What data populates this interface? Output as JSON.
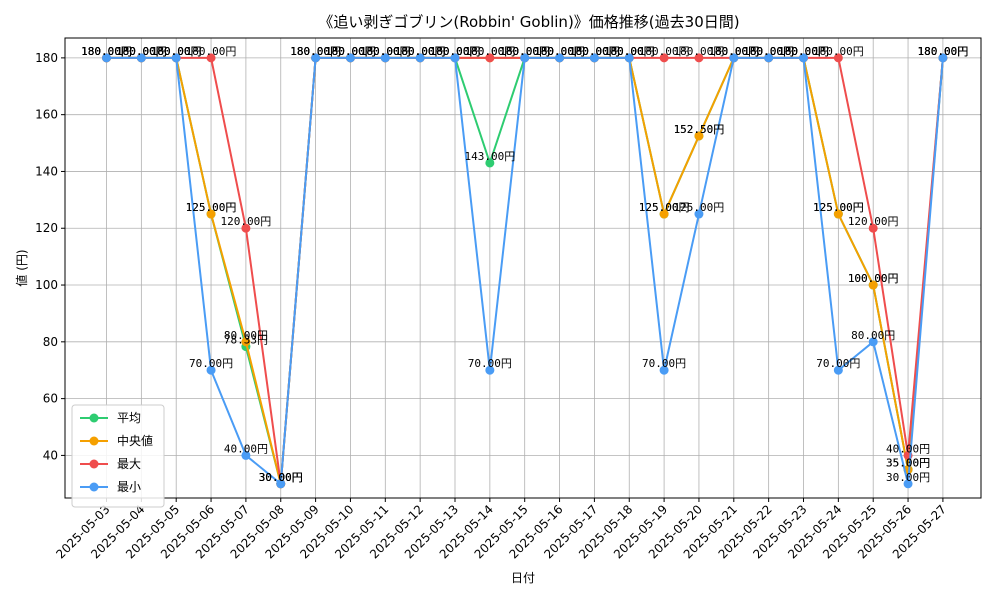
{
  "chart_data": {
    "type": "line",
    "title": "《追い剥ぎゴブリン(Robbin' Goblin)》価格推移(過去30日間)",
    "xlabel": "日付",
    "ylabel": "値 (円)",
    "ylim": [
      25,
      187
    ],
    "yticks": [
      40,
      60,
      80,
      100,
      120,
      140,
      160,
      180
    ],
    "grid": true,
    "legend_position": "lower-left",
    "value_suffix": "円",
    "categories": [
      "2025-05-03",
      "2025-05-04",
      "2025-05-05",
      "2025-05-06",
      "2025-05-07",
      "2025-05-08",
      "2025-05-09",
      "2025-05-10",
      "2025-05-11",
      "2025-05-12",
      "2025-05-13",
      "2025-05-14",
      "2025-05-15",
      "2025-05-16",
      "2025-05-17",
      "2025-05-18",
      "2025-05-19",
      "2025-05-20",
      "2025-05-21",
      "2025-05-22",
      "2025-05-23",
      "2025-05-24",
      "2025-05-25",
      "2025-05-26",
      "2025-05-27"
    ],
    "series": [
      {
        "name": "平均",
        "color": "#2ecc71",
        "values": [
          180,
          180,
          180,
          125,
          78.33,
          30,
          180,
          180,
          180,
          180,
          180,
          143,
          180,
          180,
          180,
          180,
          125,
          152.5,
          180,
          180,
          180,
          125,
          100,
          35,
          180
        ]
      },
      {
        "name": "中央値",
        "color": "#f5a000",
        "values": [
          180,
          180,
          180,
          125,
          80,
          30,
          180,
          180,
          180,
          180,
          180,
          180,
          180,
          180,
          180,
          180,
          125,
          152.5,
          180,
          180,
          180,
          125,
          100,
          35,
          180
        ]
      },
      {
        "name": "最大",
        "color": "#ef4d4d",
        "values": [
          180,
          180,
          180,
          180,
          120,
          30,
          180,
          180,
          180,
          180,
          180,
          180,
          180,
          180,
          180,
          180,
          180,
          180,
          180,
          180,
          180,
          180,
          120,
          40,
          180
        ]
      },
      {
        "name": "最小",
        "color": "#4a9cf5",
        "values": [
          180,
          180,
          180,
          70,
          40,
          30,
          180,
          180,
          180,
          180,
          180,
          70,
          180,
          180,
          180,
          180,
          70,
          125,
          180,
          180,
          180,
          70,
          80,
          30,
          180
        ]
      }
    ]
  }
}
